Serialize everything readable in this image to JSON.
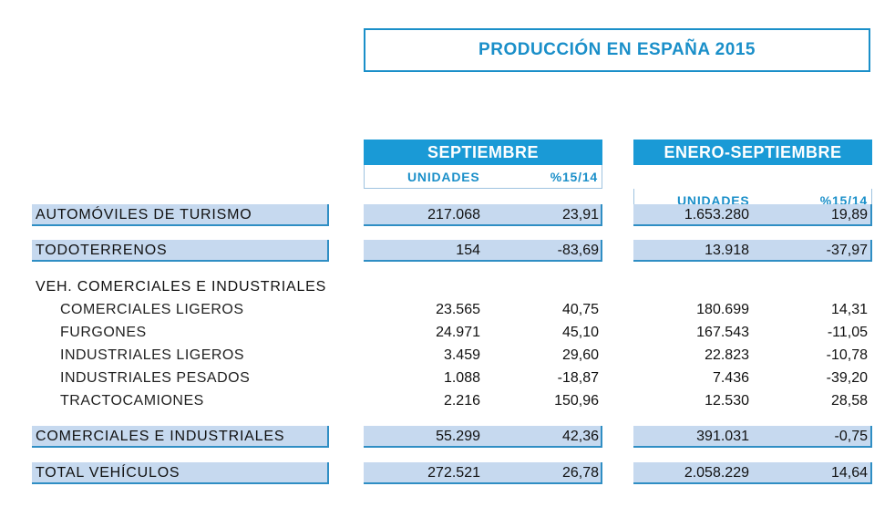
{
  "title": "PRODUCCIÓN  EN ESPAÑA 2015",
  "groups": [
    {
      "label": "SEPTIEMBRE"
    },
    {
      "label": "ENERO-SEPTIEMBRE"
    }
  ],
  "col_units": "UNIDADES",
  "col_pct": "%15/14",
  "rows": [
    {
      "label": "AUTOMÓVILES DE TURISMO",
      "v": [
        "217.068",
        "23,91",
        "1.653.280",
        "19,89"
      ]
    },
    {
      "label": "TODOTERRENOS",
      "v": [
        "154",
        "-83,69",
        "13.918",
        "-37,97"
      ]
    },
    {
      "label": "VEH. COMERCIALES E INDUSTRIALES"
    },
    {
      "label": "COMERCIALES LIGEROS",
      "v": [
        "23.565",
        "40,75",
        "180.699",
        "14,31"
      ]
    },
    {
      "label": "FURGONES",
      "v": [
        "24.971",
        "45,10",
        "167.543",
        "-11,05"
      ]
    },
    {
      "label": "INDUSTRIALES LIGEROS",
      "v": [
        "3.459",
        "29,60",
        "22.823",
        "-10,78"
      ]
    },
    {
      "label": "INDUSTRIALES PESADOS",
      "v": [
        "1.088",
        "-18,87",
        "7.436",
        "-39,20"
      ]
    },
    {
      "label": "TRACTOCAMIONES",
      "v": [
        "2.216",
        "150,96",
        "12.530",
        "28,58"
      ]
    },
    {
      "label": "COMERCIALES E INDUSTRIALES",
      "v": [
        "55.299",
        "42,36",
        "391.031",
        "-0,75"
      ]
    },
    {
      "label": "TOTAL VEHÍCULOS",
      "v": [
        "272.521",
        "26,78",
        "2.058.229",
        "14,64"
      ]
    }
  ]
}
